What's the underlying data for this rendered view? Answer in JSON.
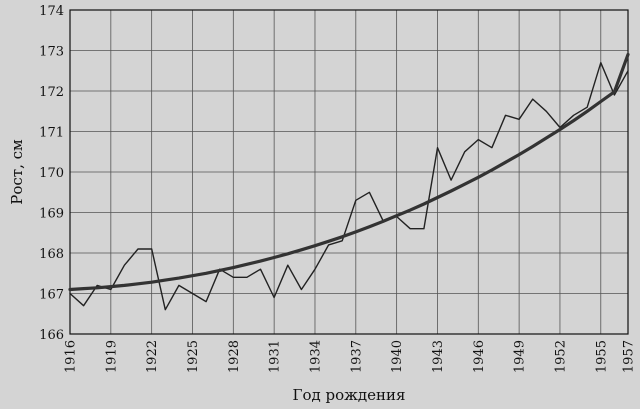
{
  "chart_data": {
    "type": "line",
    "xlabel": "Год рождения",
    "ylabel": "Рост, см",
    "xlim": [
      1916,
      1957
    ],
    "ylim": [
      166,
      174
    ],
    "xticks": [
      1916,
      1919,
      1922,
      1925,
      1928,
      1931,
      1934,
      1937,
      1940,
      1943,
      1946,
      1949,
      1952,
      1955,
      1957
    ],
    "yticks": [
      166,
      167,
      168,
      169,
      170,
      171,
      172,
      173,
      174
    ],
    "grid": true,
    "series": [
      {
        "style": "thin",
        "color": "#222222",
        "x": [
          1916,
          1917,
          1918,
          1919,
          1920,
          1921,
          1922,
          1923,
          1924,
          1925,
          1926,
          1927,
          1928,
          1929,
          1930,
          1931,
          1932,
          1933,
          1934,
          1935,
          1936,
          1937,
          1938,
          1939,
          1940,
          1941,
          1942,
          1943,
          1944,
          1945,
          1946,
          1947,
          1948,
          1949,
          1950,
          1951,
          1952,
          1953,
          1954,
          1955,
          1956,
          1957
        ],
        "y": [
          167.0,
          166.7,
          167.2,
          167.1,
          167.7,
          168.1,
          168.1,
          166.6,
          167.2,
          167.0,
          166.8,
          167.6,
          167.4,
          167.4,
          167.6,
          166.9,
          167.7,
          167.1,
          167.6,
          168.2,
          168.3,
          169.3,
          169.5,
          168.8,
          168.9,
          168.6,
          168.6,
          170.6,
          169.8,
          170.5,
          170.8,
          170.6,
          171.4,
          171.3,
          171.8,
          171.5,
          171.1,
          171.4,
          171.6,
          172.7,
          171.9,
          172.5
        ]
      },
      {
        "style": "thick",
        "color": "#333333",
        "x": [
          1916,
          1917,
          1918,
          1919,
          1920,
          1921,
          1922,
          1923,
          1924,
          1925,
          1926,
          1927,
          1928,
          1929,
          1930,
          1931,
          1932,
          1933,
          1934,
          1935,
          1936,
          1937,
          1938,
          1939,
          1940,
          1941,
          1942,
          1943,
          1944,
          1945,
          1946,
          1947,
          1948,
          1949,
          1950,
          1951,
          1952,
          1953,
          1954,
          1955,
          1956,
          1957
        ],
        "y": [
          167.1,
          167.12,
          167.14,
          167.17,
          167.2,
          167.24,
          167.28,
          167.33,
          167.38,
          167.44,
          167.5,
          167.57,
          167.64,
          167.72,
          167.8,
          167.89,
          167.98,
          168.08,
          168.18,
          168.29,
          168.4,
          168.52,
          168.65,
          168.78,
          168.92,
          169.06,
          169.21,
          169.37,
          169.53,
          169.7,
          169.87,
          170.05,
          170.24,
          170.43,
          170.63,
          170.84,
          171.05,
          171.27,
          171.5,
          171.74,
          171.98,
          172.9
        ]
      }
    ]
  }
}
